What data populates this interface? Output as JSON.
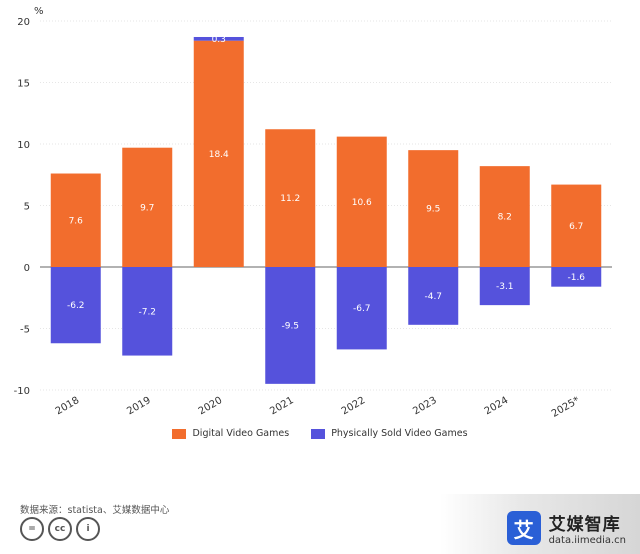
{
  "chart_data": {
    "type": "bar",
    "stacked": true,
    "y_unit": "%",
    "categories": [
      "2018",
      "2019",
      "2020",
      "2021",
      "2022",
      "2023",
      "2024",
      "2025*"
    ],
    "series": [
      {
        "name": "Digital Video Games",
        "color": "#f26d2d",
        "values": [
          7.6,
          9.7,
          18.4,
          11.2,
          10.6,
          9.5,
          8.2,
          6.7
        ]
      },
      {
        "name": "Physically Sold Video Games",
        "color": "#5552dc",
        "values": [
          -6.2,
          -7.2,
          0.3,
          -9.5,
          -6.7,
          -4.7,
          -3.1,
          -1.6
        ]
      }
    ],
    "ylim": [
      -10,
      20
    ],
    "yticks": [
      -10,
      -5,
      0,
      5,
      10,
      15,
      20
    ],
    "grid": true,
    "legend": "bottom"
  },
  "source": "数据来源：statista、艾媒数据中心",
  "brand": {
    "logo_char": "艾",
    "name": "艾媒智库",
    "url": "data.iimedia.cn"
  },
  "license_icons": [
    "=",
    "cc",
    "i"
  ]
}
